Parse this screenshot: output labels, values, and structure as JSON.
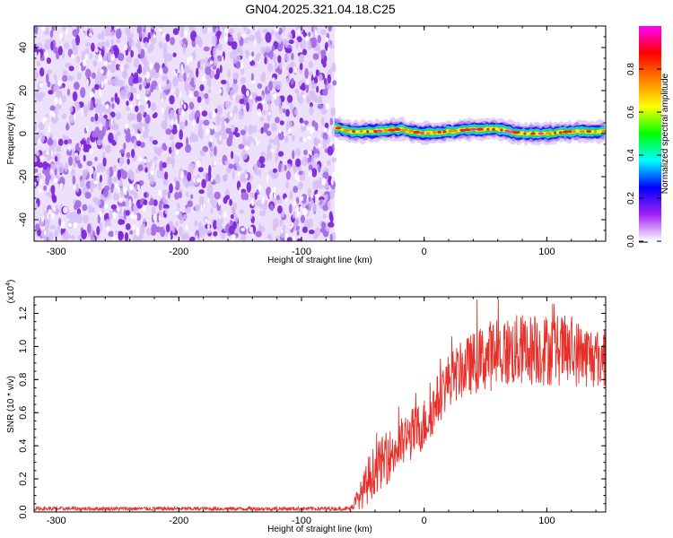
{
  "title": "GN04.2025.321.04.18.C25",
  "colors": {
    "axis": "#000000",
    "snr_line": "#e8302a",
    "noise_purple": "#7d28d8"
  },
  "chart_data": [
    {
      "type": "heatmap",
      "name": "spectrogram",
      "xlabel": "Height of straight line (km)",
      "ylabel": "Frequency (Hz)",
      "xlim": [
        -318,
        148
      ],
      "ylim": [
        -50,
        50
      ],
      "x_ticks": [
        -300,
        -200,
        -100,
        0,
        100
      ],
      "y_ticks": [
        -40,
        -20,
        0,
        20,
        40
      ],
      "noise_region_x": [
        -318,
        -73
      ],
      "signal_region_x": [
        -73,
        148
      ],
      "signal_center_hz": [
        {
          "x": -73,
          "f": 3
        },
        {
          "x": -60,
          "f": 1
        },
        {
          "x": -40,
          "f": 1
        },
        {
          "x": -20,
          "f": 2
        },
        {
          "x": 0,
          "f": 0
        },
        {
          "x": 20,
          "f": 1
        },
        {
          "x": 40,
          "f": 2
        },
        {
          "x": 60,
          "f": 2
        },
        {
          "x": 80,
          "f": 0
        },
        {
          "x": 100,
          "f": 0
        },
        {
          "x": 120,
          "f": 1
        },
        {
          "x": 148,
          "f": 1
        }
      ],
      "colorbar": {
        "label": "Normalized spectral amplitude",
        "range": [
          0,
          1
        ],
        "ticks": [
          {
            "value": 0.0,
            "label": "0.0"
          },
          {
            "value": 0.2,
            "label": "0.2"
          },
          {
            "value": 0.4,
            "label": "0.4"
          },
          {
            "value": 0.6,
            "label": "0.6"
          },
          {
            "value": 0.8,
            "label": "0.8"
          }
        ],
        "stops": [
          "#ffffff",
          "#a020f0",
          "#0000ff",
          "#00ffff",
          "#00ff00",
          "#ffff00",
          "#ff8000",
          "#ff0000",
          "#ff00ff"
        ]
      }
    },
    {
      "type": "line",
      "name": "snr",
      "xlabel": "Height of straight line (km)",
      "ylabel": "SNR (10 * v/v)",
      "scale_label_base": "(x10",
      "scale_label_exp": "4",
      "scale_label_close": ")",
      "xlim": [
        -318,
        148
      ],
      "ylim": [
        0,
        1.3
      ],
      "x_ticks": [
        -300,
        -200,
        -100,
        0,
        100
      ],
      "y_ticks": [
        0.0,
        0.2,
        0.4,
        0.6,
        0.8,
        1.0,
        1.2
      ],
      "series": [
        {
          "name": "SNR",
          "envelope": [
            {
              "x": -318,
              "mean": 0.02,
              "amp": 0.012
            },
            {
              "x": -60,
              "mean": 0.02,
              "amp": 0.012
            },
            {
              "x": -57,
              "mean": 0.05,
              "amp": 0.04
            },
            {
              "x": -50,
              "mean": 0.12,
              "amp": 0.1
            },
            {
              "x": -45,
              "mean": 0.2,
              "amp": 0.15
            },
            {
              "x": -40,
              "mean": 0.26,
              "amp": 0.15
            },
            {
              "x": -30,
              "mean": 0.33,
              "amp": 0.16
            },
            {
              "x": -20,
              "mean": 0.4,
              "amp": 0.16
            },
            {
              "x": -10,
              "mean": 0.47,
              "amp": 0.16
            },
            {
              "x": 0,
              "mean": 0.53,
              "amp": 0.16
            },
            {
              "x": 10,
              "mean": 0.66,
              "amp": 0.16
            },
            {
              "x": 20,
              "mean": 0.8,
              "amp": 0.16
            },
            {
              "x": 35,
              "mean": 0.88,
              "amp": 0.18
            },
            {
              "x": 55,
              "mean": 0.95,
              "amp": 0.22
            },
            {
              "x": 80,
              "mean": 0.98,
              "amp": 0.22
            },
            {
              "x": 110,
              "mean": 0.98,
              "amp": 0.22
            },
            {
              "x": 130,
              "mean": 0.95,
              "amp": 0.2
            },
            {
              "x": 148,
              "mean": 0.92,
              "amp": 0.18
            }
          ]
        }
      ]
    }
  ]
}
